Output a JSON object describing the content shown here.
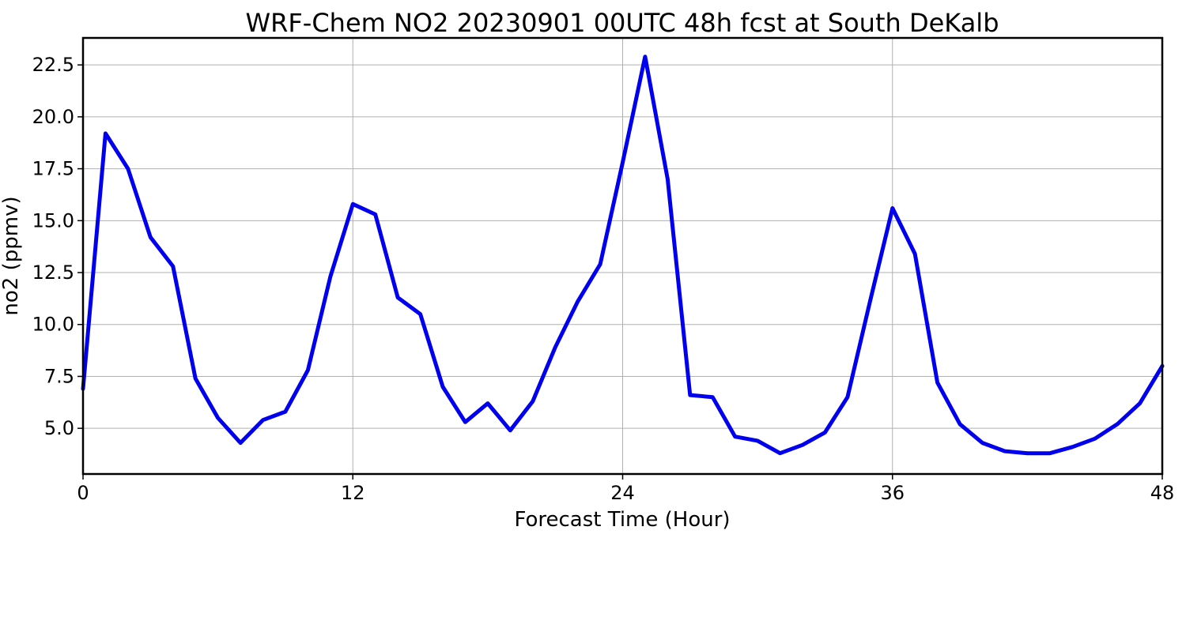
{
  "chart_data": {
    "type": "line",
    "title": "WRF-Chem NO2  20230901 00UTC 48h fcst at South DeKalb",
    "xlabel": "Forecast Time (Hour)",
    "ylabel": "no2  (ppmv)",
    "xlim": [
      0,
      48
    ],
    "ylim": [
      2.8,
      23.8
    ],
    "xticks": [
      0,
      12,
      24,
      36,
      48
    ],
    "yticks": [
      5.0,
      7.5,
      10.0,
      12.5,
      15.0,
      17.5,
      20.0,
      22.5
    ],
    "ytick_labels": [
      "5.0",
      "7.5",
      "10.0",
      "12.5",
      "15.0",
      "17.5",
      "20.0",
      "22.5"
    ],
    "grid": true,
    "series": [
      {
        "color": "#0000ee",
        "x": [
          0,
          1,
          2,
          3,
          4,
          5,
          6,
          7,
          8,
          9,
          10,
          11,
          12,
          13,
          14,
          15,
          16,
          17,
          18,
          19,
          20,
          21,
          22,
          23,
          24,
          25,
          26,
          27,
          28,
          29,
          30,
          31,
          32,
          33,
          34,
          35,
          36,
          37,
          38,
          39,
          40,
          41,
          42,
          43,
          44,
          45,
          46,
          47,
          48
        ],
        "values": [
          6.9,
          19.2,
          17.5,
          14.2,
          12.8,
          7.4,
          5.5,
          4.3,
          5.4,
          5.8,
          7.8,
          12.3,
          15.8,
          15.3,
          11.3,
          10.5,
          7.0,
          5.3,
          6.2,
          4.9,
          6.3,
          8.9,
          11.1,
          12.9,
          17.8,
          22.9,
          17.0,
          6.6,
          6.5,
          4.6,
          4.4,
          3.8,
          4.2,
          4.8,
          6.5,
          11.1,
          15.6,
          13.4,
          7.2,
          5.2,
          4.3,
          3.9,
          3.8,
          3.8,
          4.1,
          4.5,
          5.2,
          6.2,
          8.0
        ]
      }
    ]
  }
}
